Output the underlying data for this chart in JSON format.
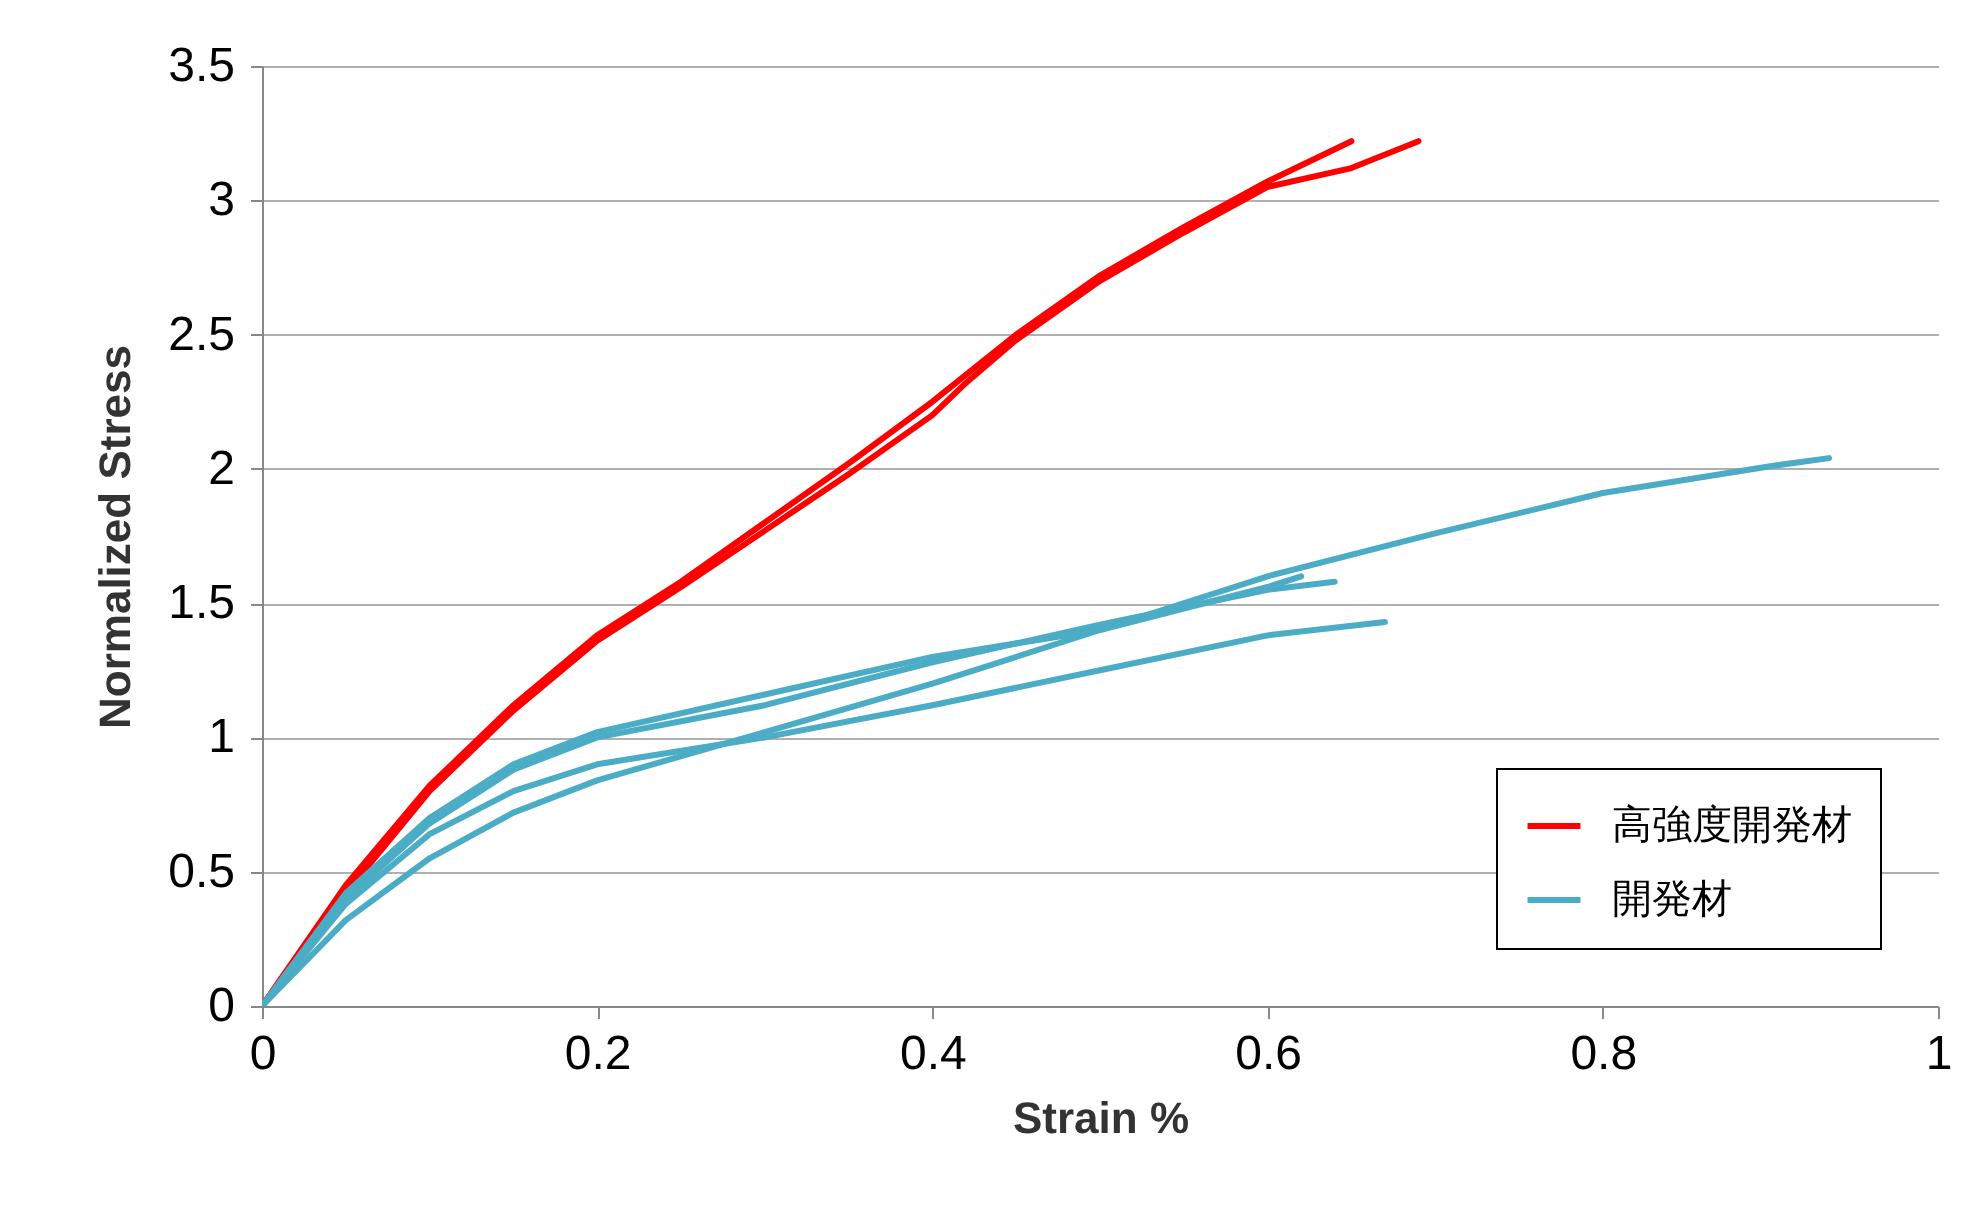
{
  "chart_data": {
    "type": "line",
    "xlabel": "Strain %",
    "ylabel": "Normalized Stress",
    "xlim": [
      0,
      1
    ],
    "xticks": [
      0,
      0.2,
      0.4,
      0.6,
      0.8,
      1
    ],
    "ylim": [
      0,
      3.5
    ],
    "yticks": [
      0,
      0.5,
      1,
      1.5,
      2,
      2.5,
      3,
      3.5
    ],
    "grid": "y",
    "legend": "bottom right",
    "line_style": "solid",
    "marker": "none",
    "series": [
      {
        "name": "高強度開発材",
        "color": "#ff0000",
        "x": [
          0,
          0.05,
          0.1,
          0.15,
          0.2,
          0.25,
          0.3,
          0.35,
          0.4,
          0.45,
          0.5,
          0.55,
          0.6,
          0.65
        ],
        "values": [
          0,
          0.45,
          0.82,
          1.12,
          1.38,
          1.58,
          1.8,
          2.02,
          2.25,
          2.5,
          2.72,
          2.9,
          3.07,
          3.22
        ]
      },
      {
        "color": "#ff0000",
        "x": [
          0,
          0.05,
          0.1,
          0.15,
          0.2,
          0.25,
          0.3,
          0.35,
          0.4,
          0.42,
          0.45,
          0.5,
          0.55,
          0.6,
          0.65,
          0.69
        ],
        "values": [
          0,
          0.42,
          0.8,
          1.1,
          1.36,
          1.56,
          1.77,
          1.98,
          2.2,
          2.32,
          2.48,
          2.7,
          2.88,
          3.05,
          3.12,
          3.22
        ]
      },
      {
        "name": "開発材",
        "color": "#4bacc6",
        "x": [
          0,
          0.05,
          0.1,
          0.15,
          0.2,
          0.3,
          0.4,
          0.5,
          0.6,
          0.7,
          0.8,
          0.9,
          0.935
        ],
        "values": [
          0,
          0.32,
          0.55,
          0.72,
          0.84,
          1.02,
          1.2,
          1.4,
          1.6,
          1.76,
          1.91,
          2.01,
          2.04
        ]
      },
      {
        "color": "#4bacc6",
        "x": [
          0,
          0.05,
          0.1,
          0.15,
          0.2,
          0.3,
          0.4,
          0.5,
          0.6,
          0.64
        ],
        "values": [
          0,
          0.4,
          0.68,
          0.88,
          1.0,
          1.12,
          1.28,
          1.42,
          1.55,
          1.58
        ]
      },
      {
        "color": "#4bacc6",
        "x": [
          0,
          0.05,
          0.1,
          0.15,
          0.2,
          0.3,
          0.4,
          0.5,
          0.6,
          0.67
        ],
        "values": [
          0,
          0.38,
          0.64,
          0.8,
          0.9,
          1.0,
          1.12,
          1.25,
          1.38,
          1.43
        ]
      },
      {
        "color": "#4bacc6",
        "x": [
          0,
          0.05,
          0.1,
          0.15,
          0.2,
          0.3,
          0.4,
          0.5,
          0.6,
          0.62
        ],
        "values": [
          0,
          0.42,
          0.7,
          0.9,
          1.02,
          1.16,
          1.3,
          1.4,
          1.56,
          1.6
        ]
      }
    ]
  }
}
